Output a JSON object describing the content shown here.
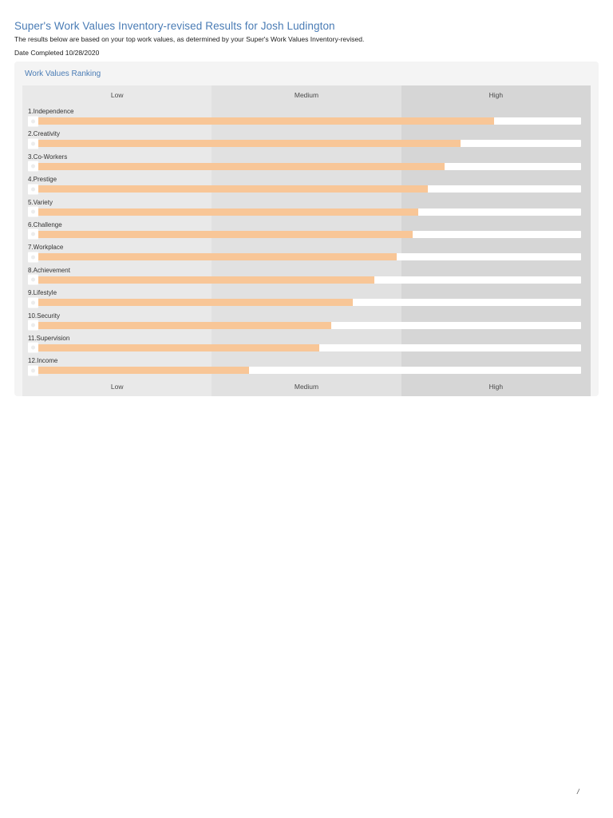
{
  "page": {
    "title": "Super's Work Values Inventory-revised Results for Josh Ludington",
    "subtitle": "The results below are based on your top work values, as determined by your Super's Work Values Inventory-revised.",
    "date_completed": "Date Completed 10/28/2020",
    "footer_mark": "/"
  },
  "panel": {
    "header": "Work Values Ranking"
  },
  "chart_data": {
    "type": "bar",
    "orientation": "horizontal",
    "title": "Work Values Ranking",
    "axis_bands": [
      "Low",
      "Medium",
      "High"
    ],
    "band_axis_positions": [
      "top",
      "bottom"
    ],
    "xlim": [
      0,
      100
    ],
    "categories": [
      "1.Independence",
      "2.Creativity",
      "3.Co-Workers",
      "4.Prestige",
      "5.Variety",
      "6.Challenge",
      "7.Workplace",
      "8.Achievement",
      "9.Lifestyle",
      "10.Security",
      "11.Supervision",
      "12.Income"
    ],
    "values": [
      84.2,
      78.2,
      75.3,
      72.3,
      70.5,
      69.5,
      66.6,
      62.6,
      58.8,
      54.8,
      52.6,
      39.9
    ],
    "value_unit": "percent-of-scale",
    "grid": false,
    "legend": false
  },
  "colors": {
    "accent": "#4a7cb5",
    "panel_bg": "#f4f4f4",
    "band_low": "#e9e9e9",
    "band_medium": "#e1e1e1",
    "band_high": "#d6d6d6",
    "bar_fill": "#f8c697",
    "bar_track": "#ffffff"
  }
}
